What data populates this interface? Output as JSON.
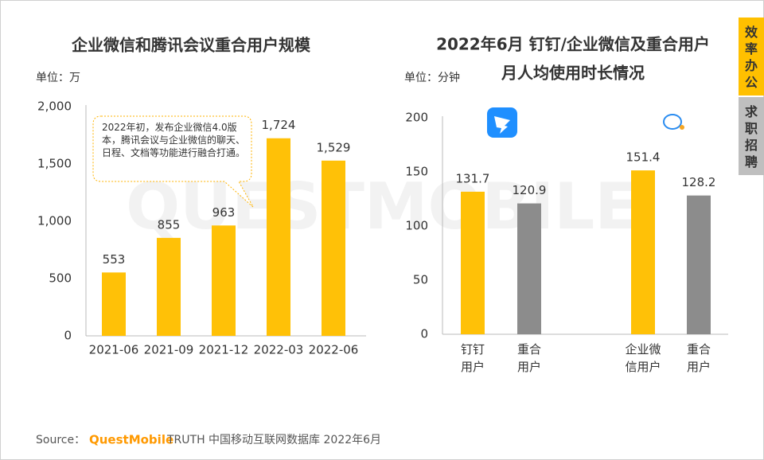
{
  "side_tabs": [
    "效率办公",
    "求职招聘"
  ],
  "watermark": "QUESTMOBILE",
  "source": {
    "label": "Source：",
    "brand": "QuestMobile",
    "text": "TRUTH 中国移动互联网数据库 2022年6月"
  },
  "chart_data": [
    {
      "type": "bar",
      "title": "企业微信和腾讯会议重合用户规模",
      "unit": "单位：万",
      "annotation": "2022年初，发布企业微信4.0版本，腾讯会议与企业微信的聊天、日程、文档等功能进行融合打通。",
      "categories": [
        "2021-06",
        "2021-09",
        "2021-12",
        "2022-03",
        "2022-06"
      ],
      "values": [
        553,
        855,
        963,
        1724,
        1529
      ],
      "value_labels": [
        "553",
        "855",
        "963",
        "1,724",
        "1,529"
      ],
      "color": "#ffc107",
      "ylim": [
        0,
        2000
      ],
      "yticks": [
        0,
        500,
        {
          "value": 1000,
          "label": "1,000"
        },
        {
          "value": 1500,
          "label": "1,500"
        },
        {
          "value": 2000,
          "label": "2,000"
        }
      ]
    },
    {
      "type": "bar",
      "title": [
        "2022年6月 钉钉/企业微信及重合用户",
        "月人均使用时长情况"
      ],
      "unit": "单位：分钟",
      "categories": [
        "钉钉\n用户",
        "重合\n用户",
        "企业微\n信用户",
        "重合\n用户"
      ],
      "values": [
        131.7,
        120.9,
        151.4,
        128.2
      ],
      "colors": [
        "#ffc107",
        "#8c8c8c",
        "#ffc107",
        "#8c8c8c"
      ],
      "ylim": [
        0,
        200
      ],
      "yticks": [
        0,
        50,
        100,
        150,
        200
      ]
    }
  ]
}
